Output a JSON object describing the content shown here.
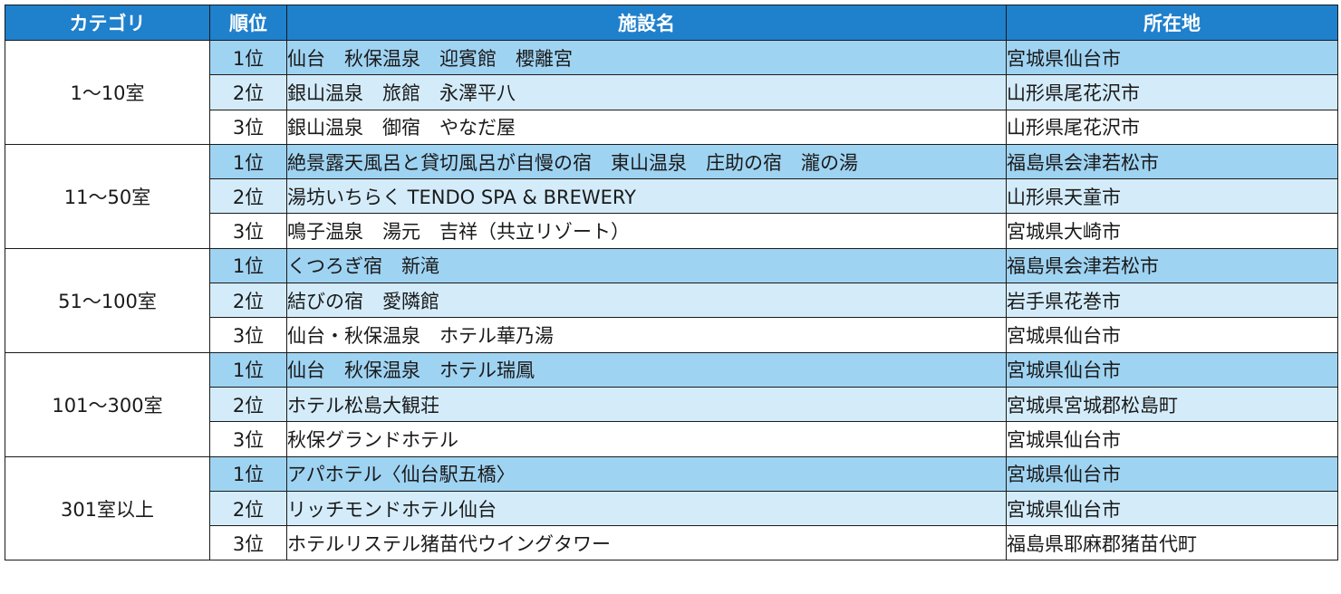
{
  "header": {
    "category": "カテゴリ",
    "rank": "順位",
    "facility": "施設名",
    "location": "所在地"
  },
  "colors": {
    "header_bg": "#1f80cc",
    "rank1_bg": "#9fd3f2",
    "rank2_bg": "#d4ecfa",
    "rank3_bg": "#ffffff"
  },
  "groups": [
    {
      "category": "1～10室",
      "rows": [
        {
          "rank": "1位",
          "facility": "仙台　秋保温泉　迎賓館　櫻離宮",
          "location": "宮城県仙台市"
        },
        {
          "rank": "2位",
          "facility": "銀山温泉　旅館　永澤平八",
          "location": "山形県尾花沢市"
        },
        {
          "rank": "3位",
          "facility": "銀山温泉　御宿　やなだ屋",
          "location": "山形県尾花沢市"
        }
      ]
    },
    {
      "category": "11～50室",
      "rows": [
        {
          "rank": "1位",
          "facility": "絶景露天風呂と貸切風呂が自慢の宿　東山温泉　庄助の宿　瀧の湯",
          "location": "福島県会津若松市"
        },
        {
          "rank": "2位",
          "facility": "湯坊いちらく TENDO SPA & BREWERY",
          "location": "山形県天童市"
        },
        {
          "rank": "3位",
          "facility": "鳴子温泉　湯元　吉祥（共立リゾート）",
          "location": "宮城県大崎市"
        }
      ]
    },
    {
      "category": "51～100室",
      "rows": [
        {
          "rank": "1位",
          "facility": "くつろぎ宿　新滝",
          "location": "福島県会津若松市"
        },
        {
          "rank": "2位",
          "facility": "結びの宿　愛隣館",
          "location": "岩手県花巻市"
        },
        {
          "rank": "3位",
          "facility": "仙台・秋保温泉　ホテル華乃湯",
          "location": "宮城県仙台市"
        }
      ]
    },
    {
      "category": "101～300室",
      "rows": [
        {
          "rank": "1位",
          "facility": "仙台　秋保温泉　ホテル瑞鳳",
          "location": "宮城県仙台市"
        },
        {
          "rank": "2位",
          "facility": "ホテル松島大観荘",
          "location": "宮城県宮城郡松島町"
        },
        {
          "rank": "3位",
          "facility": "秋保グランドホテル",
          "location": "宮城県仙台市"
        }
      ]
    },
    {
      "category": "301室以上",
      "rows": [
        {
          "rank": "1位",
          "facility": "アパホテル〈仙台駅五橋〉",
          "location": "宮城県仙台市"
        },
        {
          "rank": "2位",
          "facility": "リッチモンドホテル仙台",
          "location": "宮城県仙台市"
        },
        {
          "rank": "3位",
          "facility": "ホテルリステル猪苗代ウイングタワー",
          "location": "福島県耶麻郡猪苗代町"
        }
      ]
    }
  ]
}
